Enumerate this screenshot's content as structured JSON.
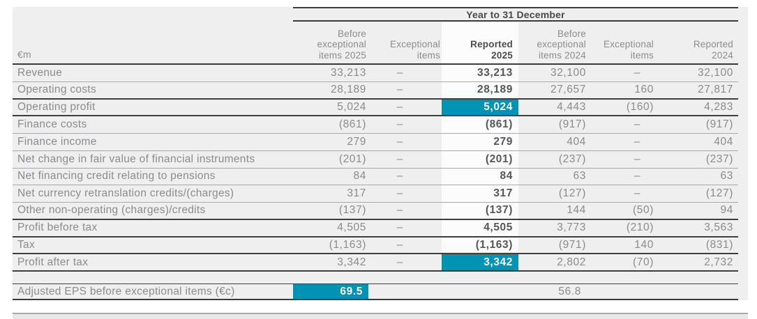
{
  "colors": {
    "accent_teal": "#0093b4",
    "panel_background": "#efefef",
    "highlight_band": "#fcfcfc",
    "dark_rule": "#3a3a39",
    "thin_rule": "#a8a8a7",
    "text_gray": "#8a8b8d",
    "text_dark": "#54565a"
  },
  "chart_data": {
    "type": "table",
    "title": "Year to 31 December",
    "unit": "€m",
    "column_headers": [
      "Before\nexceptional\nitems 2025",
      "Exceptional\nitems",
      "Reported\n2025",
      "Before\nexceptional\nitems 2024",
      "Exceptional\nitems",
      "Reported\n2024"
    ],
    "rows": [
      {
        "label": "Revenue",
        "values": [
          "33,213",
          "–",
          "33,213",
          "32,100",
          "–",
          "32,100"
        ],
        "separator": "thin",
        "highlight_reported": false
      },
      {
        "label": "Operating costs",
        "values": [
          "28,189",
          "–",
          "28,189",
          "27,657",
          "160",
          "27,817"
        ],
        "separator": "dark",
        "highlight_reported": false
      },
      {
        "label": "Operating profit",
        "values": [
          "5,024",
          "–",
          "5,024",
          "4,443",
          "(160)",
          "4,283"
        ],
        "separator": "dark",
        "highlight_reported": true
      },
      {
        "label": "Finance costs",
        "values": [
          "(861)",
          "–",
          "(861)",
          "(917)",
          "–",
          "(917)"
        ],
        "separator": "thin",
        "highlight_reported": false
      },
      {
        "label": "Finance income",
        "values": [
          "279",
          "–",
          "279",
          "404",
          "–",
          "404"
        ],
        "separator": "thin",
        "highlight_reported": false
      },
      {
        "label": "Net change in fair value of financial instruments",
        "values": [
          "(201)",
          "–",
          "(201)",
          "(237)",
          "–",
          "(237)"
        ],
        "separator": "thin",
        "highlight_reported": false
      },
      {
        "label": "Net financing credit relating to pensions",
        "values": [
          "84",
          "–",
          "84",
          "63",
          "–",
          "63"
        ],
        "separator": "thin",
        "highlight_reported": false
      },
      {
        "label": "Net currency retranslation credits/(charges)",
        "values": [
          "317",
          "–",
          "317",
          "(127)",
          "–",
          "(127)"
        ],
        "separator": "thin",
        "highlight_reported": false
      },
      {
        "label": "Other non-operating (charges)/credits",
        "values": [
          "(137)",
          "–",
          "(137)",
          "144",
          "(50)",
          "94"
        ],
        "separator": "dark",
        "highlight_reported": false
      },
      {
        "label": "Profit before tax",
        "values": [
          "4,505",
          "–",
          "4,505",
          "3,773",
          "(210)",
          "3,563"
        ],
        "separator": "dark",
        "highlight_reported": false
      },
      {
        "label": "Tax",
        "values": [
          "(1,163)",
          "–",
          "(1,163)",
          "(971)",
          "140",
          "(831)"
        ],
        "separator": "dark",
        "highlight_reported": false
      },
      {
        "label": "Profit after tax",
        "values": [
          "3,342",
          "–",
          "3,342",
          "2,802",
          "(70)",
          "2,732"
        ],
        "separator": "dark",
        "highlight_reported": true
      }
    ],
    "eps": {
      "label": "Adjusted EPS before exceptional items (€c)",
      "value_2025": "69.5",
      "value_2024": "56.8"
    }
  }
}
